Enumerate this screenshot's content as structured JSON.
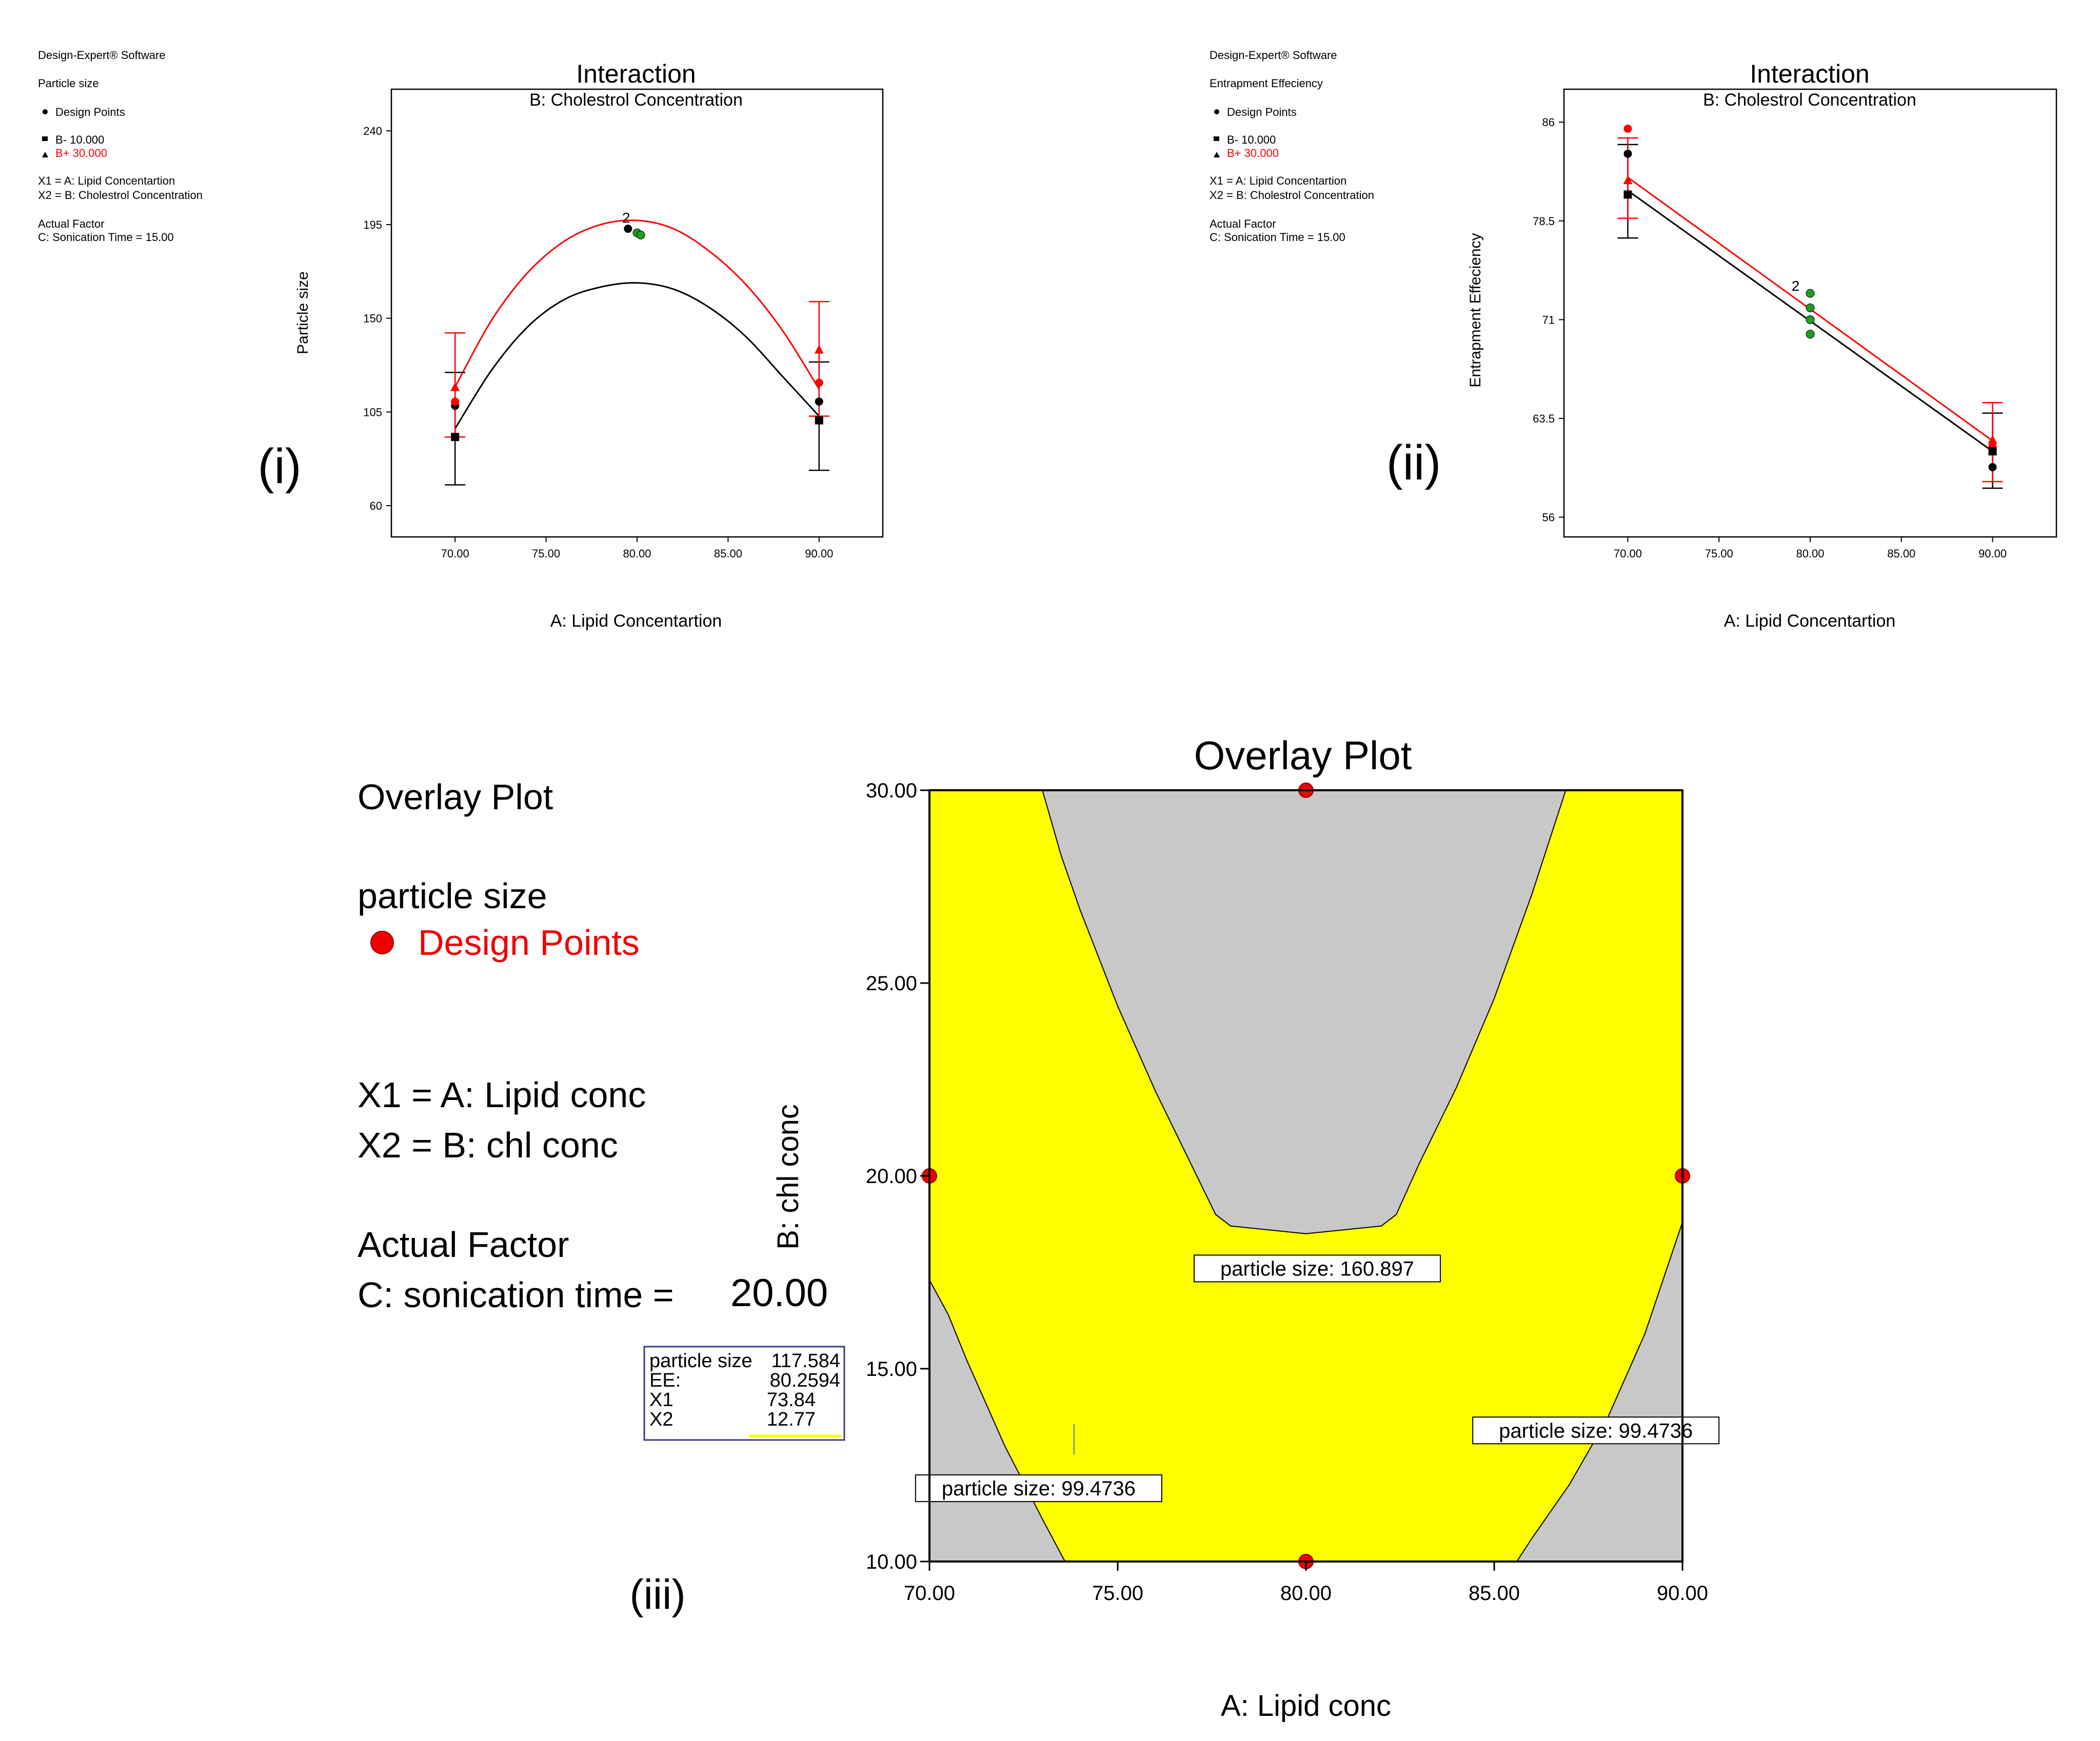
{
  "colors": {
    "red": "#ff0000",
    "black": "#000000",
    "green": "#1f9e1f",
    "yellow": "#ffff00",
    "gray": "#c8c8c8",
    "design_red": "#ee0000"
  },
  "chart_data": [
    {
      "id": "i",
      "type": "line",
      "panel_label": "(i)",
      "title": "Interaction",
      "subtitle": "B: Cholestrol Concentration",
      "xlabel": "A: Lipid Concentartion",
      "ylabel": "Particle size",
      "xlim": [
        66.5,
        93.5
      ],
      "ylim": [
        45,
        260
      ],
      "xticks": [
        "70.00",
        "75.00",
        "80.00",
        "85.00",
        "90.00"
      ],
      "yticks": [
        "60",
        "105",
        "150",
        "195",
        "240"
      ],
      "legend_texts": [
        "Design-Expert® Software",
        "Particle size",
        "Design Points",
        "B- 10.000",
        "B+ 30.000",
        "X1 = A: Lipid Concentartion",
        "X2 = B: Cholestrol Concentration",
        "Actual Factor",
        "C: Sonication Time = 15.00"
      ],
      "series": [
        {
          "name": "B- 10.000",
          "color": "black",
          "x": [
            70,
            72,
            74,
            76,
            78,
            80,
            82,
            84,
            86,
            88,
            90
          ],
          "values": [
            97,
            125,
            146,
            159,
            165,
            167,
            164,
            155,
            141,
            122,
            103
          ]
        },
        {
          "name": "B+ 30.000",
          "color": "red",
          "x": [
            70,
            72,
            74,
            76,
            78,
            80,
            82,
            84,
            86,
            88,
            90
          ],
          "values": [
            117,
            149,
            172,
            187,
            195,
            197,
            193,
            182,
            166,
            144,
            116
          ]
        }
      ],
      "error_bars": [
        {
          "x": 70,
          "low": 70,
          "high": 124,
          "color": "black"
        },
        {
          "x": 70,
          "low": 93,
          "high": 143,
          "color": "red"
        },
        {
          "x": 90,
          "low": 77,
          "high": 129,
          "color": "black"
        },
        {
          "x": 90,
          "low": 103,
          "high": 158,
          "color": "red"
        }
      ],
      "points": [
        {
          "x": 70,
          "y": 93,
          "color": "black",
          "shape": "square"
        },
        {
          "x": 70,
          "y": 108,
          "color": "black",
          "shape": "circle"
        },
        {
          "x": 70,
          "y": 110,
          "color": "red",
          "shape": "circle"
        },
        {
          "x": 70,
          "y": 117,
          "color": "red",
          "shape": "triangle"
        },
        {
          "x": 90,
          "y": 101,
          "color": "black",
          "shape": "square"
        },
        {
          "x": 90,
          "y": 110,
          "color": "black",
          "shape": "circle"
        },
        {
          "x": 90,
          "y": 119,
          "color": "red",
          "shape": "circle"
        },
        {
          "x": 90,
          "y": 135,
          "color": "red",
          "shape": "triangle"
        },
        {
          "x": 79.5,
          "y": 193,
          "color": "black",
          "shape": "circle"
        },
        {
          "x": 80,
          "y": 191,
          "color": "green",
          "shape": "circle"
        },
        {
          "x": 80.2,
          "y": 190,
          "color": "green",
          "shape": "circle"
        }
      ],
      "point_labels": [
        {
          "x": 79.4,
          "y": 196,
          "text": "2"
        }
      ]
    },
    {
      "id": "ii",
      "type": "line",
      "panel_label": "(ii)",
      "title": "Interaction",
      "subtitle": "B: Cholestrol Concentration",
      "xlabel": "A: Lipid Concentartion",
      "ylabel": "Entrapment Effeciency",
      "xlim": [
        66.5,
        93.5
      ],
      "ylim": [
        54.5,
        88.5
      ],
      "xticks": [
        "70.00",
        "75.00",
        "80.00",
        "85.00",
        "90.00"
      ],
      "yticks": [
        "56",
        "63.5",
        "71",
        "78.5",
        "86"
      ],
      "legend_texts": [
        "Design-Expert® Software",
        "Entrapment Effeciency",
        "Design Points",
        "B- 10.000",
        "B+ 30.000",
        "X1 = A: Lipid Concentartion",
        "X2 = B: Cholestrol Concentration",
        "Actual Factor",
        "C: Sonication Time = 15.00"
      ],
      "series": [
        {
          "name": "B- 10.000",
          "color": "black",
          "x": [
            70,
            90
          ],
          "values": [
            80.8,
            61.0
          ]
        },
        {
          "name": "B+ 30.000",
          "color": "red",
          "x": [
            70,
            90
          ],
          "values": [
            81.8,
            61.8
          ]
        }
      ],
      "error_bars": [
        {
          "x": 70,
          "low": 77.2,
          "high": 84.3,
          "color": "black"
        },
        {
          "x": 70,
          "low": 78.7,
          "high": 84.8,
          "color": "red"
        },
        {
          "x": 90,
          "low": 58.2,
          "high": 63.9,
          "color": "black"
        },
        {
          "x": 90,
          "low": 58.7,
          "high": 64.7,
          "color": "red"
        }
      ],
      "points": [
        {
          "x": 70,
          "y": 85.5,
          "color": "red",
          "shape": "circle"
        },
        {
          "x": 70,
          "y": 83.6,
          "color": "black",
          "shape": "circle"
        },
        {
          "x": 70,
          "y": 81.6,
          "color": "red",
          "shape": "triangle"
        },
        {
          "x": 70,
          "y": 80.5,
          "color": "black",
          "shape": "square"
        },
        {
          "x": 80,
          "y": 73.0,
          "color": "green",
          "shape": "circle"
        },
        {
          "x": 80,
          "y": 71.9,
          "color": "green",
          "shape": "circle"
        },
        {
          "x": 80,
          "y": 71.0,
          "color": "green",
          "shape": "circle"
        },
        {
          "x": 80,
          "y": 69.9,
          "color": "green",
          "shape": "circle"
        },
        {
          "x": 90,
          "y": 61.9,
          "color": "red",
          "shape": "triangle"
        },
        {
          "x": 90,
          "y": 61.4,
          "color": "red",
          "shape": "circle"
        },
        {
          "x": 90,
          "y": 61.0,
          "color": "black",
          "shape": "square"
        },
        {
          "x": 90,
          "y": 59.8,
          "color": "black",
          "shape": "circle"
        }
      ],
      "point_labels": [
        {
          "x": 79.2,
          "y": 73.2,
          "text": "2"
        }
      ]
    },
    {
      "id": "iii",
      "type": "contour",
      "panel_label": "(iii)",
      "title": "Overlay Plot",
      "xlabel": "A: Lipid conc",
      "ylabel": "B: chl conc",
      "xlim": [
        70,
        90
      ],
      "ylim": [
        10,
        30
      ],
      "xticks": [
        "70.00",
        "75.00",
        "80.00",
        "85.00",
        "90.00"
      ],
      "yticks": [
        "10.00",
        "15.00",
        "20.00",
        "25.00",
        "30.00"
      ],
      "legend": {
        "heading": "Overlay Plot",
        "response": "particle size",
        "design_points": "Design Points",
        "x1": "X1 = A: Lipid conc",
        "x2": "X2 = B: chl conc",
        "actual_factor": "Actual Factor",
        "factor_c_label": "C: sonication time =",
        "factor_c_value": "20.00"
      },
      "contour_labels": [
        {
          "text": "particle size: 160.897",
          "x": 80.3,
          "y": 17.6
        },
        {
          "text": "particle size: 99.4736",
          "x": 87.7,
          "y": 13.4
        },
        {
          "text": "particle size: 99.4736",
          "x": 72.9,
          "y": 11.9
        }
      ],
      "upper_contour": [
        [
          73.0,
          30.0
        ],
        [
          73.5,
          28.3
        ],
        [
          74.0,
          26.9
        ],
        [
          75.0,
          24.4
        ],
        [
          76.0,
          22.2
        ],
        [
          77.0,
          20.2
        ],
        [
          77.6,
          19.0
        ],
        [
          78.0,
          18.7
        ],
        [
          80.0,
          18.5
        ],
        [
          82.0,
          18.7
        ],
        [
          82.4,
          19.0
        ],
        [
          83.0,
          20.3
        ],
        [
          84.0,
          22.3
        ],
        [
          85.0,
          24.6
        ],
        [
          86.0,
          27.3
        ],
        [
          86.9,
          30.0
        ]
      ],
      "lower_left_contour": [
        [
          70.0,
          17.3
        ],
        [
          70.5,
          16.4
        ],
        [
          71.0,
          15.2
        ],
        [
          72.0,
          13.0
        ],
        [
          73.0,
          11.1
        ],
        [
          73.6,
          10.0
        ]
      ],
      "lower_right_contour": [
        [
          85.6,
          10.0
        ],
        [
          86.0,
          10.6
        ],
        [
          87.0,
          12.0
        ],
        [
          88.0,
          13.7
        ],
        [
          89.0,
          15.9
        ],
        [
          90.0,
          18.8
        ]
      ],
      "design_points": [
        [
          80,
          30
        ],
        [
          70,
          20
        ],
        [
          90,
          20
        ],
        [
          80,
          10
        ]
      ],
      "flag": {
        "x": 73.84,
        "y": 12.77,
        "rows": [
          {
            "label": "particle size",
            "value": "117.584"
          },
          {
            "label": "EE:",
            "value": "80.2594"
          },
          {
            "label": "X1",
            "value": "73.84"
          },
          {
            "label": "X2",
            "value": "12.77"
          }
        ]
      }
    }
  ]
}
